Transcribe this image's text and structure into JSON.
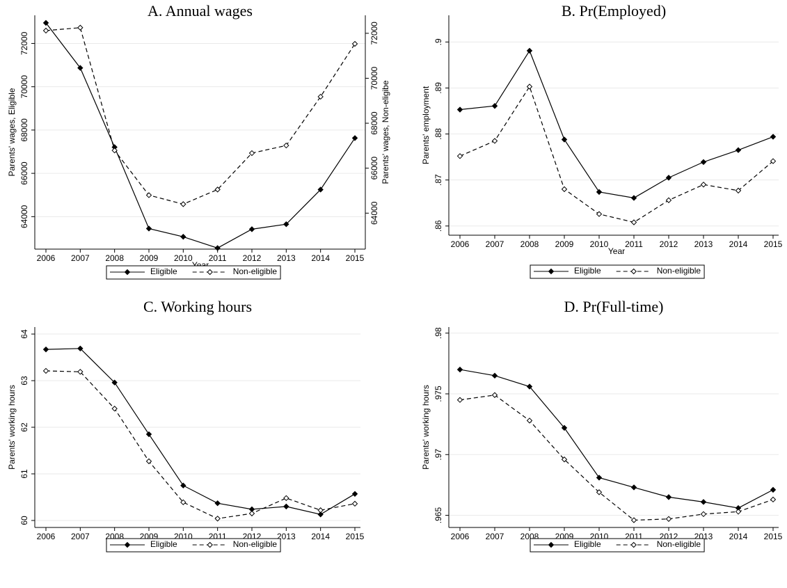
{
  "chart_data": [
    {
      "type": "line",
      "title": "A. Annual wages",
      "xlabel": "Year",
      "ylabel": "Parents' wages, Eligible",
      "y2label": "Parents' wages, Non-eligibe",
      "categories": [
        "2006",
        "2007",
        "2008",
        "2009",
        "2010",
        "2011",
        "2012",
        "2013",
        "2014",
        "2015"
      ],
      "series": [
        {
          "name": "Eligible",
          "color": "#000000",
          "line_style": "solid",
          "marker": "filled",
          "values": [
            72950,
            70870,
            67210,
            63450,
            63070,
            62550,
            63420,
            63650,
            65250,
            67630
          ]
        },
        {
          "name": "Non-eligible",
          "color": "#000000",
          "line_style": "dashed",
          "marker": "hollow",
          "axis": "y2",
          "values": [
            72120,
            72250,
            66790,
            64800,
            64400,
            65050,
            66670,
            67010,
            69180,
            71530
          ]
        }
      ],
      "ylim": [
        62500,
        73300
      ],
      "yticks": [
        64000,
        66000,
        68000,
        70000,
        72000
      ],
      "y2lim": [
        62400,
        72800
      ],
      "y2ticks": [
        64000,
        66000,
        68000,
        70000,
        72000
      ],
      "grid": true
    },
    {
      "type": "line",
      "title": "B. Pr(Employed)",
      "xlabel": "Year",
      "ylabel": "Parents' employment",
      "categories": [
        "2006",
        "2007",
        "2008",
        "2009",
        "2010",
        "2011",
        "2012",
        "2013",
        "2014",
        "2015"
      ],
      "series": [
        {
          "name": "Eligible",
          "color": "#000000",
          "line_style": "solid",
          "marker": "filled",
          "values": [
            0.8853,
            0.8861,
            0.8981,
            0.8788,
            0.8674,
            0.8661,
            0.8705,
            0.8739,
            0.8765,
            0.8794
          ]
        },
        {
          "name": "Non-eligible",
          "color": "#000000",
          "line_style": "dashed",
          "marker": "hollow",
          "values": [
            0.8752,
            0.8785,
            0.8903,
            0.868,
            0.8626,
            0.8608,
            0.8656,
            0.869,
            0.8677,
            0.8741
          ]
        }
      ],
      "ylim": [
        0.858,
        0.9058
      ],
      "yticks": [
        {
          "value": 0.86,
          "label": ".86"
        },
        {
          "value": 0.87,
          "label": ".87"
        },
        {
          "value": 0.88,
          "label": ".88"
        },
        {
          "value": 0.89,
          "label": ".89"
        },
        {
          "value": 0.9,
          "label": ".9"
        }
      ],
      "grid": true
    },
    {
      "type": "line",
      "title": "C. Working hours",
      "xlabel": "Year",
      "ylabel": "Parents' working hours",
      "categories": [
        "2006",
        "2007",
        "2008",
        "2009",
        "2010",
        "2011",
        "2012",
        "2013",
        "2014",
        "2015"
      ],
      "series": [
        {
          "name": "Eligible",
          "color": "#000000",
          "line_style": "solid",
          "marker": "filled",
          "values": [
            63.67,
            63.69,
            62.96,
            61.85,
            60.75,
            60.37,
            60.24,
            60.3,
            60.13,
            60.57
          ]
        },
        {
          "name": "Non-eligible",
          "color": "#000000",
          "line_style": "dashed",
          "marker": "hollow",
          "values": [
            63.21,
            63.19,
            62.4,
            61.27,
            60.39,
            60.04,
            60.15,
            60.48,
            60.22,
            60.36
          ]
        }
      ],
      "ylim": [
        59.85,
        64.15
      ],
      "yticks": [
        60,
        61,
        62,
        63,
        64
      ],
      "grid": true
    },
    {
      "type": "line",
      "title": "D. Pr(Full-time)",
      "xlabel": "Year",
      "ylabel": "Parents' working hours",
      "categories": [
        "2006",
        "2007",
        "2008",
        "2009",
        "2010",
        "2011",
        "2012",
        "2013",
        "2014",
        "2015"
      ],
      "series": [
        {
          "name": "Eligible",
          "color": "#000000",
          "line_style": "solid",
          "marker": "filled",
          "values": [
            0.977,
            0.9765,
            0.9756,
            0.9722,
            0.9681,
            0.9673,
            0.9665,
            0.9661,
            0.9656,
            0.9671
          ]
        },
        {
          "name": "Non-eligible",
          "color": "#000000",
          "line_style": "dashed",
          "marker": "hollow",
          "values": [
            0.9745,
            0.9749,
            0.9728,
            0.9696,
            0.9669,
            0.9646,
            0.9647,
            0.9651,
            0.9653,
            0.9663
          ]
        }
      ],
      "ylim": [
        0.964,
        0.9805
      ],
      "yticks": [
        {
          "value": 0.965,
          "label": ".965"
        },
        {
          "value": 0.97,
          "label": ".97"
        },
        {
          "value": 0.975,
          "label": ".975"
        },
        {
          "value": 0.98,
          "label": ".98"
        }
      ],
      "grid": true
    }
  ]
}
